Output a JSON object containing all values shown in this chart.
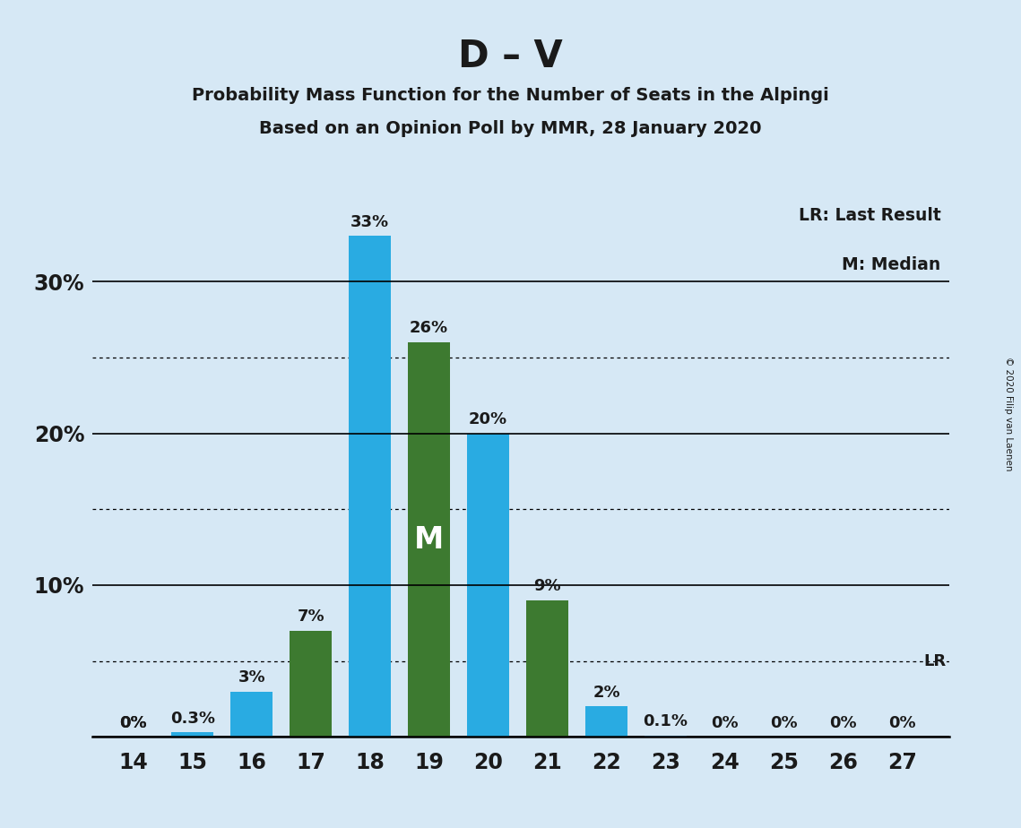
{
  "title": "D – V",
  "subtitle1": "Probability Mass Function for the Number of Seats in the Alpingi",
  "subtitle2": "Based on an Opinion Poll by MMR, 28 January 2020",
  "copyright": "© 2020 Filip van Laenen",
  "seats": [
    14,
    15,
    16,
    17,
    18,
    19,
    20,
    21,
    22,
    23,
    24,
    25,
    26,
    27
  ],
  "cyan_values": [
    0.0,
    0.3,
    3.0,
    0.0,
    33.0,
    0.0,
    20.0,
    0.0,
    2.0,
    0.1,
    0.0,
    0.0,
    0.0,
    0.0
  ],
  "green_values": [
    0.0,
    0.0,
    0.0,
    7.0,
    0.0,
    26.0,
    0.0,
    9.0,
    0.0,
    0.0,
    0.0,
    0.0,
    0.0,
    0.0
  ],
  "cyan_labels": [
    "0%",
    "0.3%",
    "3%",
    "",
    "33%",
    "",
    "20%",
    "",
    "2%",
    "0.1%",
    "0%",
    "0%",
    "0%",
    "0%"
  ],
  "green_labels": [
    "0%",
    "",
    "",
    "7%",
    "",
    "26%",
    "",
    "9%",
    "",
    "",
    "",
    "",
    "",
    ""
  ],
  "cyan_color": "#29ABE2",
  "green_color": "#3D7A30",
  "background_color": "#D6E8F5",
  "median_seat": 19,
  "lr_value": 5.0,
  "lr_label": "LR",
  "legend_lr": "LR: Last Result",
  "legend_m": "M: Median",
  "ylim": [
    0,
    36
  ],
  "solid_yticks": [
    0,
    10,
    20,
    30
  ],
  "dotted_yticks": [
    5,
    15,
    25
  ],
  "lr_dotted_y": 5.0,
  "bar_width": 0.72,
  "xlim": [
    13.3,
    27.8
  ]
}
